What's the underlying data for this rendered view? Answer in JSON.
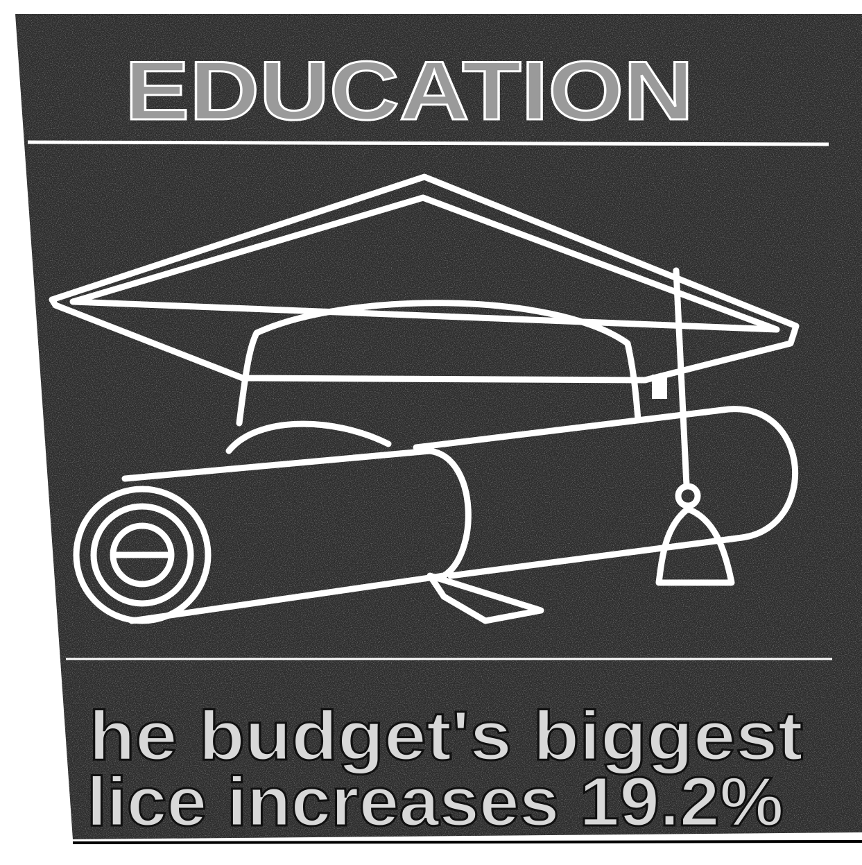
{
  "header": {
    "title": "EDUCATION"
  },
  "caption": {
    "lines": [
      "he budget's biggest",
      "lice increases 19.2%"
    ]
  }
}
